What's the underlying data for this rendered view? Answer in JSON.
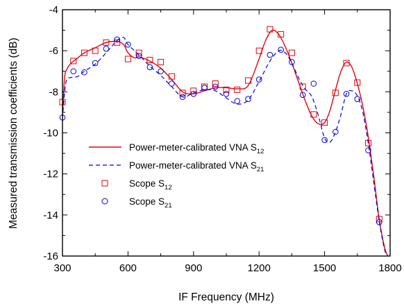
{
  "chart_data": {
    "type": "line",
    "title": "",
    "xlabel": "IF Frequency (MHz)",
    "ylabel": "Measured transmission coefficients (dB)",
    "xlim": [
      300,
      1800
    ],
    "ylim": [
      -16,
      -4
    ],
    "xticks": [
      300,
      600,
      900,
      1200,
      1500,
      1800
    ],
    "yticks": [
      -16,
      -14,
      -12,
      -10,
      -8,
      -6,
      -4
    ],
    "grid": false,
    "legend_position": "lower-left",
    "series": [
      {
        "name": "Power-meter-calibrated VNA S12",
        "label_main": "Power-meter-calibrated VNA S",
        "label_sub": "12",
        "style": "solid-line",
        "color": "#e8000b",
        "x": [
          300,
          310,
          320,
          340,
          370,
          400,
          450,
          500,
          550,
          580,
          600,
          630,
          650,
          700,
          750,
          800,
          850,
          900,
          950,
          1000,
          1050,
          1100,
          1150,
          1200,
          1230,
          1260,
          1290,
          1320,
          1350,
          1380,
          1410,
          1440,
          1470,
          1500,
          1525,
          1550,
          1575,
          1600,
          1625,
          1650,
          1675,
          1700,
          1725,
          1750,
          1775,
          1790
        ],
        "y": [
          -9.1,
          -7.3,
          -6.9,
          -6.6,
          -6.35,
          -6.1,
          -5.85,
          -5.6,
          -5.55,
          -5.7,
          -6.1,
          -6.35,
          -6.3,
          -6.5,
          -6.85,
          -7.4,
          -8.0,
          -8.1,
          -7.95,
          -7.8,
          -7.8,
          -7.85,
          -7.7,
          -6.4,
          -5.5,
          -5.0,
          -5.2,
          -5.8,
          -6.6,
          -7.5,
          -8.4,
          -9.15,
          -9.55,
          -9.5,
          -8.9,
          -7.9,
          -7.0,
          -6.55,
          -6.8,
          -7.6,
          -8.7,
          -10.2,
          -12.1,
          -14.2,
          -15.6,
          -16.0
        ]
      },
      {
        "name": "Power-meter-calibrated VNA S21",
        "label_main": "Power-meter-calibrated VNA S",
        "label_sub": "21",
        "style": "dashed-line",
        "color": "#0000dd",
        "x": [
          300,
          310,
          320,
          340,
          370,
          400,
          450,
          500,
          550,
          580,
          600,
          650,
          700,
          750,
          800,
          850,
          900,
          950,
          1000,
          1050,
          1100,
          1150,
          1200,
          1250,
          1290,
          1320,
          1350,
          1380,
          1410,
          1440,
          1470,
          1500,
          1525,
          1550,
          1575,
          1600,
          1625,
          1650,
          1675,
          1700,
          1725,
          1750,
          1775,
          1790
        ],
        "y": [
          -9.3,
          -8.0,
          -7.4,
          -7.3,
          -7.25,
          -7.0,
          -6.65,
          -6.1,
          -5.5,
          -5.35,
          -5.7,
          -6.2,
          -6.75,
          -7.2,
          -7.75,
          -8.25,
          -8.05,
          -7.9,
          -7.95,
          -8.3,
          -8.6,
          -8.4,
          -7.5,
          -6.5,
          -6.0,
          -6.1,
          -6.6,
          -7.3,
          -7.85,
          -8.2,
          -9.1,
          -10.25,
          -10.45,
          -9.95,
          -9.1,
          -8.1,
          -7.95,
          -8.2,
          -9.0,
          -10.5,
          -12.4,
          -14.3,
          -15.7,
          -16.0
        ]
      },
      {
        "name": "Scope S12",
        "label_main": "Scope S",
        "label_sub": "12",
        "style": "square-markers",
        "color": "#e8000b",
        "x": [
          300,
          350,
          400,
          450,
          500,
          550,
          600,
          650,
          700,
          750,
          800,
          850,
          900,
          950,
          1000,
          1050,
          1100,
          1150,
          1200,
          1250,
          1300,
          1350,
          1400,
          1450,
          1500,
          1550,
          1600,
          1650,
          1700,
          1750
        ],
        "y": [
          -8.5,
          -6.5,
          -6.1,
          -6.0,
          -5.6,
          -5.6,
          -6.4,
          -6.1,
          -6.45,
          -6.55,
          -7.25,
          -8.05,
          -7.95,
          -7.75,
          -7.6,
          -7.9,
          -7.9,
          -7.45,
          -6.0,
          -4.95,
          -5.2,
          -6.1,
          -7.75,
          -9.1,
          -9.5,
          -8.05,
          -6.6,
          -7.55,
          -10.5,
          -14.2
        ]
      },
      {
        "name": "Scope S21",
        "label_main": "Scope S",
        "label_sub": "21",
        "style": "circle-markers",
        "color": "#0000dd",
        "x": [
          300,
          350,
          400,
          450,
          500,
          550,
          600,
          650,
          700,
          750,
          800,
          850,
          900,
          950,
          1000,
          1050,
          1100,
          1150,
          1200,
          1250,
          1300,
          1350,
          1400,
          1450,
          1500,
          1550,
          1600,
          1650,
          1700,
          1750
        ],
        "y": [
          -9.25,
          -7.0,
          -7.05,
          -6.6,
          -5.9,
          -5.45,
          -5.7,
          -6.25,
          -6.8,
          -7.0,
          -7.6,
          -8.25,
          -8.1,
          -7.8,
          -7.75,
          -8.1,
          -8.45,
          -8.35,
          -7.4,
          -6.2,
          -5.95,
          -6.55,
          -8.15,
          -7.6,
          -10.35,
          -9.95,
          -8.1,
          -8.35,
          -10.85,
          -14.35
        ]
      }
    ]
  }
}
